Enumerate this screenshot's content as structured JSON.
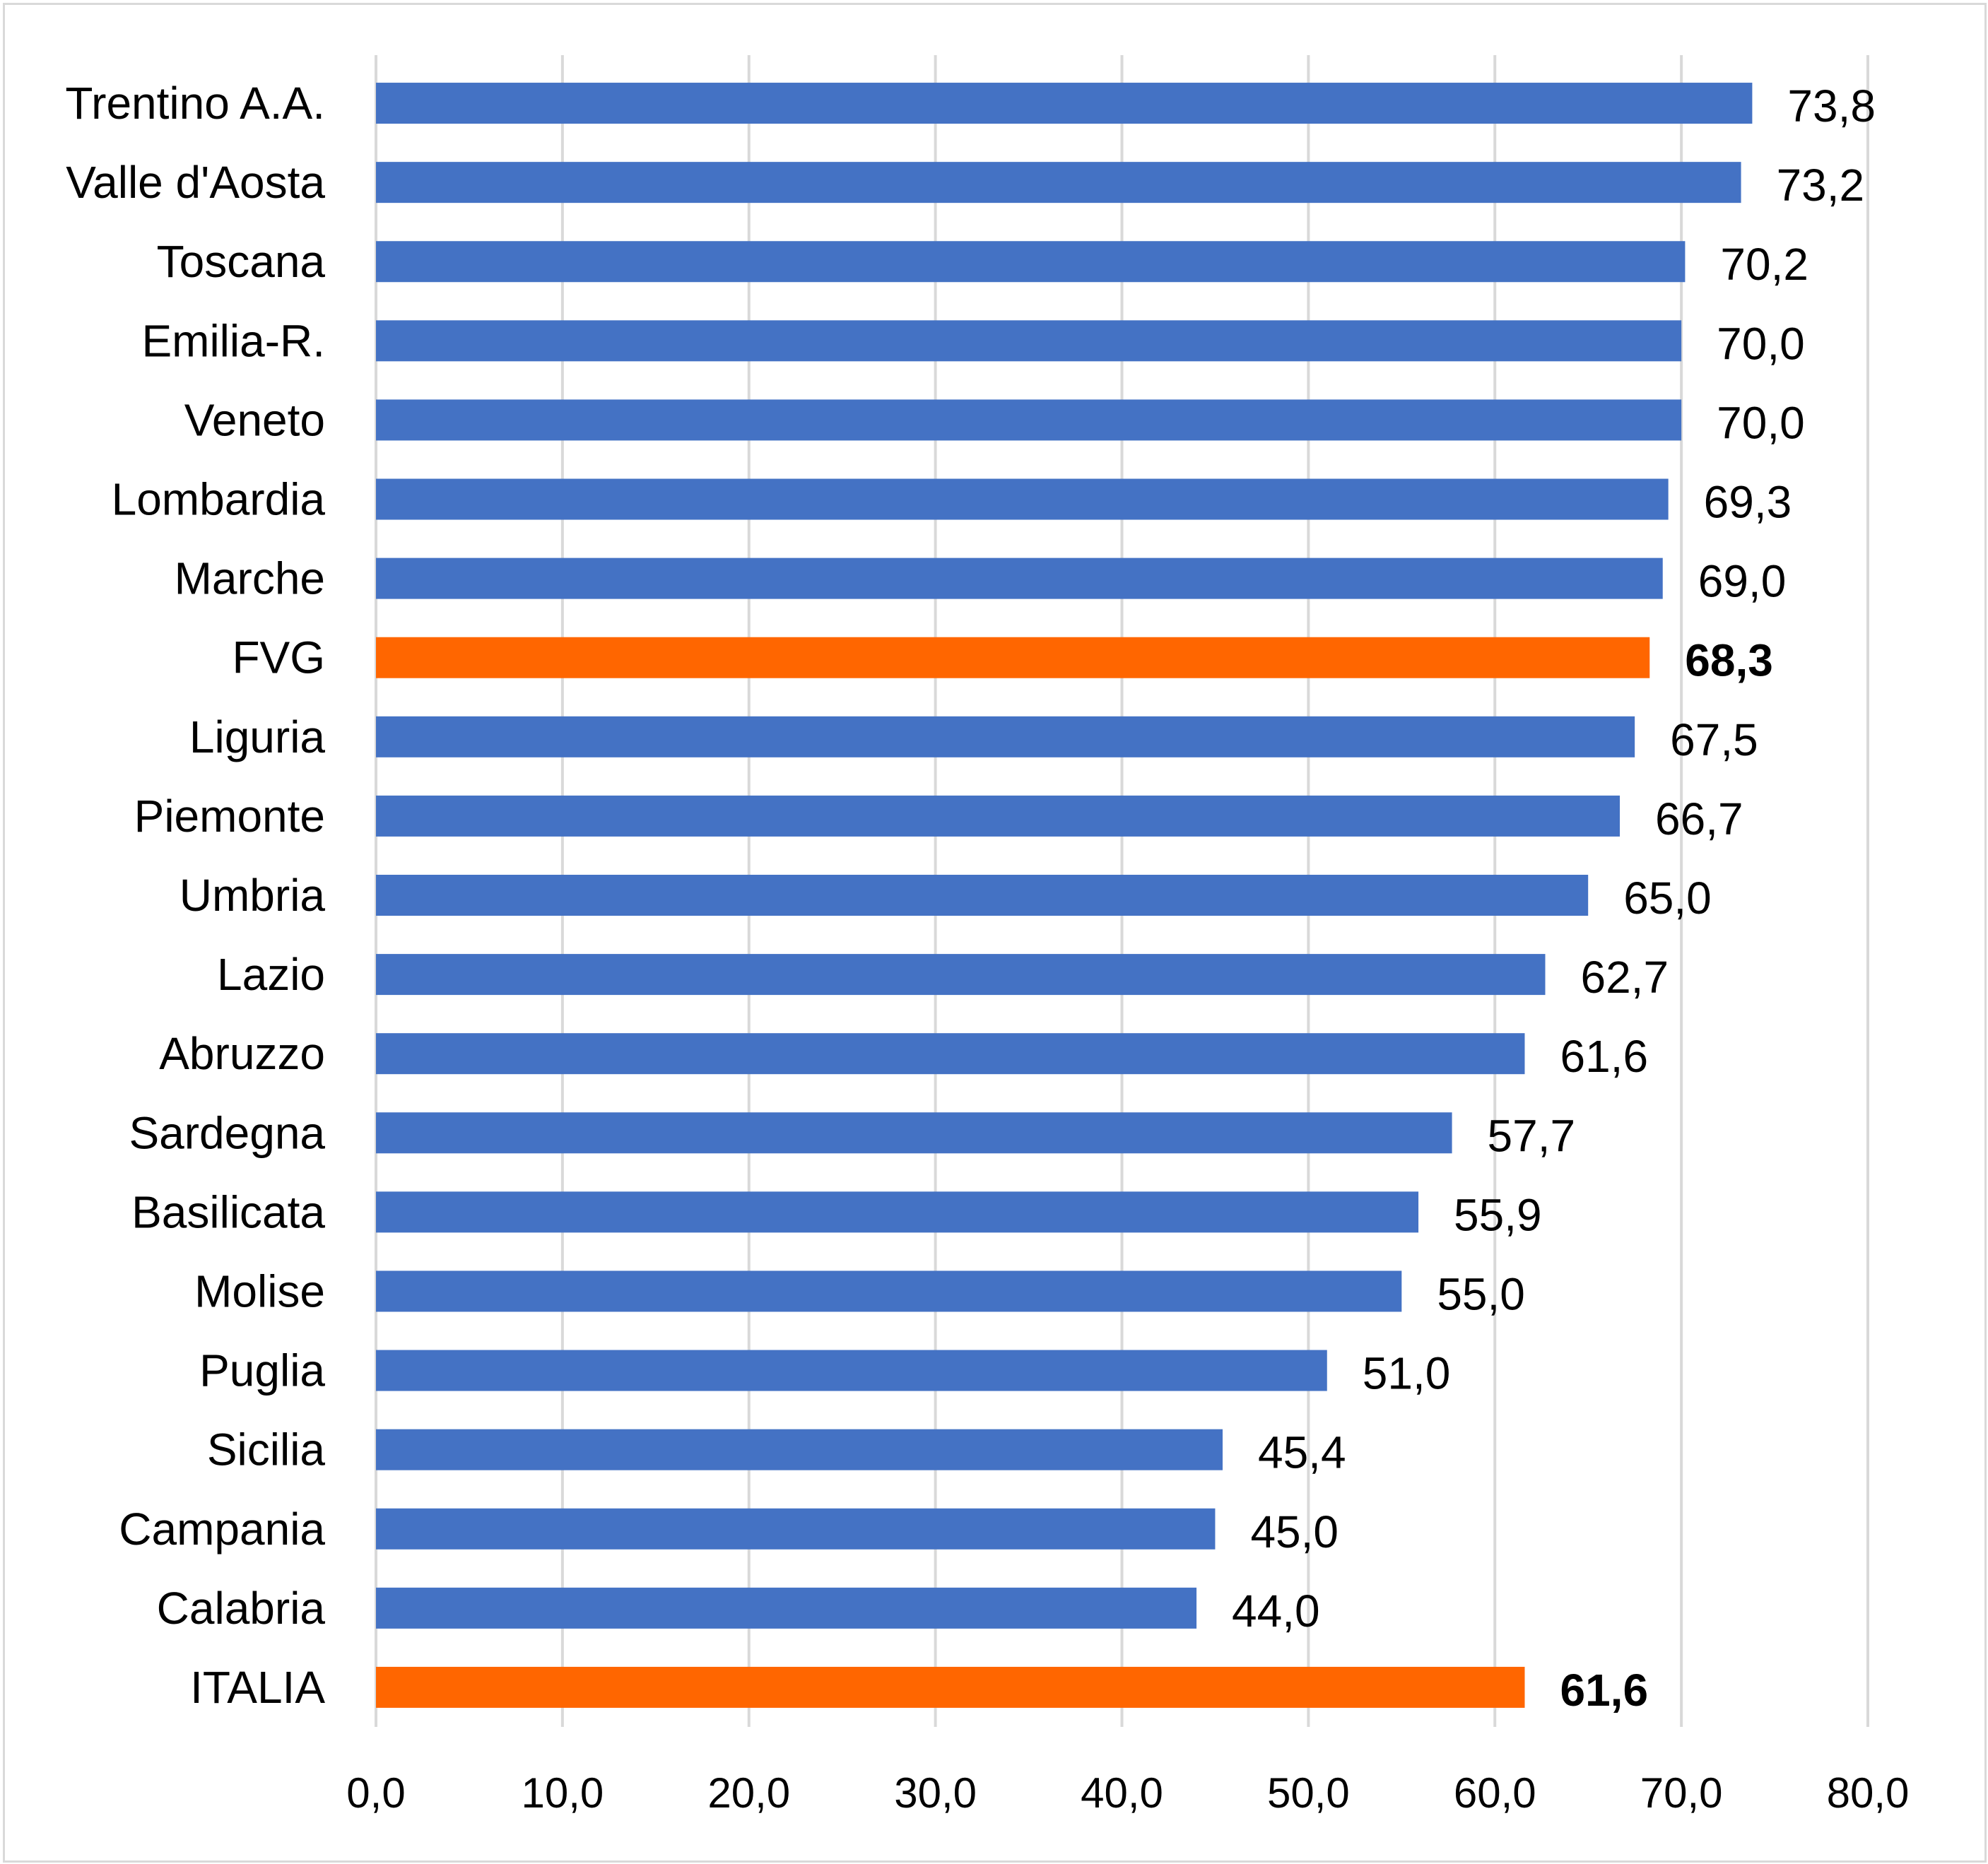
{
  "colors": {
    "default_bar": "#4472c4",
    "highlight_bar": "#ff6600",
    "grid": "#d9d9d9"
  },
  "chart_data": {
    "type": "bar",
    "orientation": "horizontal",
    "categories": [
      "Trentino A.A.",
      "Valle d'Aosta",
      "Toscana",
      "Emilia-R.",
      "Veneto",
      "Lombardia",
      "Marche",
      "FVG",
      "Liguria",
      "Piemonte",
      "Umbria",
      "Lazio",
      "Abruzzo",
      "Sardegna",
      "Basilicata",
      "Molise",
      "Puglia",
      "Sicilia",
      "Campania",
      "Calabria",
      "ITALIA"
    ],
    "values": [
      73.8,
      73.2,
      70.2,
      70.0,
      70.0,
      69.3,
      69.0,
      68.3,
      67.5,
      66.7,
      65.0,
      62.7,
      61.6,
      57.7,
      55.9,
      55.0,
      51.0,
      45.4,
      45.0,
      44.0,
      61.6
    ],
    "value_labels": [
      "73,8",
      "73,2",
      "70,2",
      "70,0",
      "70,0",
      "69,3",
      "69,0",
      "68,3",
      "67,5",
      "66,7",
      "65,0",
      "62,7",
      "61,6",
      "57,7",
      "55,9",
      "55,0",
      "51,0",
      "45,4",
      "45,0",
      "44,0",
      "61,6"
    ],
    "highlighted": [
      "FVG",
      "ITALIA"
    ],
    "xlim": [
      0,
      80
    ],
    "xticks": [
      0,
      10,
      20,
      30,
      40,
      50,
      60,
      70,
      80
    ],
    "xtick_labels": [
      "0,0",
      "10,0",
      "20,0",
      "30,0",
      "40,0",
      "50,0",
      "60,0",
      "70,0",
      "80,0"
    ],
    "title": "",
    "xlabel": "",
    "ylabel": "",
    "grid": "vertical",
    "legend": "none"
  }
}
